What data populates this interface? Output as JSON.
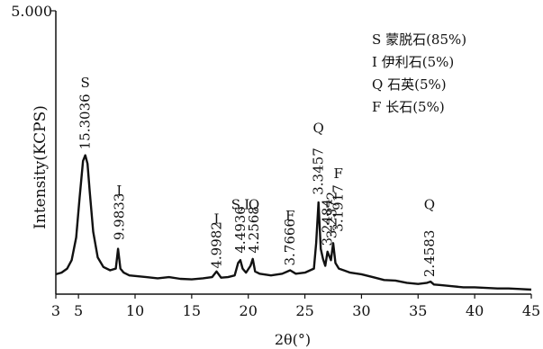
{
  "chart_data": {
    "type": "line",
    "xlabel": "2θ(°)",
    "ylabel": "Intensity(KCPS)",
    "xlim": [
      3,
      45
    ],
    "ylim": [
      0,
      5.0
    ],
    "x_ticks": [
      "3",
      "5",
      "10",
      "15",
      "20",
      "25",
      "30",
      "35",
      "40",
      "45"
    ],
    "y_ticks": [
      "5.000"
    ],
    "grid": false,
    "legend_position": "top-right",
    "legend": [
      {
        "symbol": "S",
        "mineral": "蒙脱石(85%)"
      },
      {
        "symbol": "I",
        "mineral": "伊利石(5%)"
      },
      {
        "symbol": "Q",
        "mineral": "石英(5%)"
      },
      {
        "symbol": "F",
        "mineral": "长石(5%)"
      }
    ],
    "series": [
      {
        "x": [
          3.0,
          3.5,
          4.0,
          4.4,
          4.8,
          5.1,
          5.4,
          5.6,
          5.8,
          6.0,
          6.3,
          6.7,
          7.2,
          7.8,
          8.3,
          8.5,
          8.7,
          9.0,
          9.5,
          10.0,
          11.0,
          12.0,
          13.0,
          14.0,
          15.0,
          16.0,
          16.8,
          17.2,
          17.6,
          18.2,
          18.8,
          19.1,
          19.3,
          19.5,
          19.8,
          20.2,
          20.4,
          20.6,
          21.0,
          22.0,
          23.0,
          23.7,
          24.2,
          25.0,
          25.8,
          26.0,
          26.2,
          26.4,
          26.6,
          26.8,
          27.0,
          27.3,
          27.5,
          27.7,
          28.0,
          29.0,
          30.0,
          31.0,
          32.0,
          33.0,
          34.0,
          35.0,
          35.8,
          36.1,
          36.4,
          37.0,
          38.0,
          39.0,
          40.0,
          41.0,
          42.0,
          43.0,
          44.0,
          45.0
        ],
        "y": [
          0.35,
          0.38,
          0.45,
          0.6,
          1.0,
          1.7,
          2.35,
          2.45,
          2.3,
          1.8,
          1.1,
          0.65,
          0.48,
          0.42,
          0.45,
          0.8,
          0.45,
          0.38,
          0.33,
          0.32,
          0.3,
          0.28,
          0.3,
          0.27,
          0.26,
          0.28,
          0.3,
          0.4,
          0.29,
          0.3,
          0.33,
          0.55,
          0.6,
          0.45,
          0.38,
          0.5,
          0.62,
          0.4,
          0.36,
          0.33,
          0.36,
          0.42,
          0.36,
          0.38,
          0.45,
          0.9,
          1.62,
          0.8,
          0.62,
          0.5,
          0.75,
          0.6,
          0.9,
          0.55,
          0.45,
          0.38,
          0.35,
          0.3,
          0.25,
          0.24,
          0.2,
          0.18,
          0.2,
          0.22,
          0.17,
          0.16,
          0.14,
          0.12,
          0.12,
          0.11,
          0.1,
          0.1,
          0.09,
          0.08
        ]
      }
    ],
    "annotations": [
      {
        "text": "15.3036",
        "x": 5.6,
        "y": 2.55
      },
      {
        "text": "S",
        "x": 5.6,
        "y": 3.65
      },
      {
        "text": "I",
        "x": 8.6,
        "y": 1.75
      },
      {
        "text": "9.9833",
        "x": 8.6,
        "y": 0.95
      },
      {
        "text": "I",
        "x": 17.2,
        "y": 1.25
      },
      {
        "text": "4.9982",
        "x": 17.2,
        "y": 0.45
      },
      {
        "text": "S,I",
        "x": 19.3,
        "y": 1.5
      },
      {
        "text": "4.4936",
        "x": 19.3,
        "y": 0.72
      },
      {
        "text": "Q",
        "x": 20.5,
        "y": 1.5
      },
      {
        "text": "4.2568",
        "x": 20.5,
        "y": 0.72
      },
      {
        "text": "F",
        "x": 23.7,
        "y": 1.3
      },
      {
        "text": "3.7666",
        "x": 23.7,
        "y": 0.5
      },
      {
        "text": "Q",
        "x": 26.2,
        "y": 2.85
      },
      {
        "text": "3.3457",
        "x": 26.2,
        "y": 1.75
      },
      {
        "text": "3.2484",
        "x": 27.0,
        "y": 0.85
      },
      {
        "text": "3.2372",
        "x": 27.4,
        "y": 0.98
      },
      {
        "text": "F",
        "x": 27.95,
        "y": 2.05
      },
      {
        "text": "3.1917",
        "x": 27.95,
        "y": 1.1
      },
      {
        "text": "Q",
        "x": 36.0,
        "y": 1.5
      },
      {
        "text": "2.4583",
        "x": 36.0,
        "y": 0.3
      }
    ]
  }
}
